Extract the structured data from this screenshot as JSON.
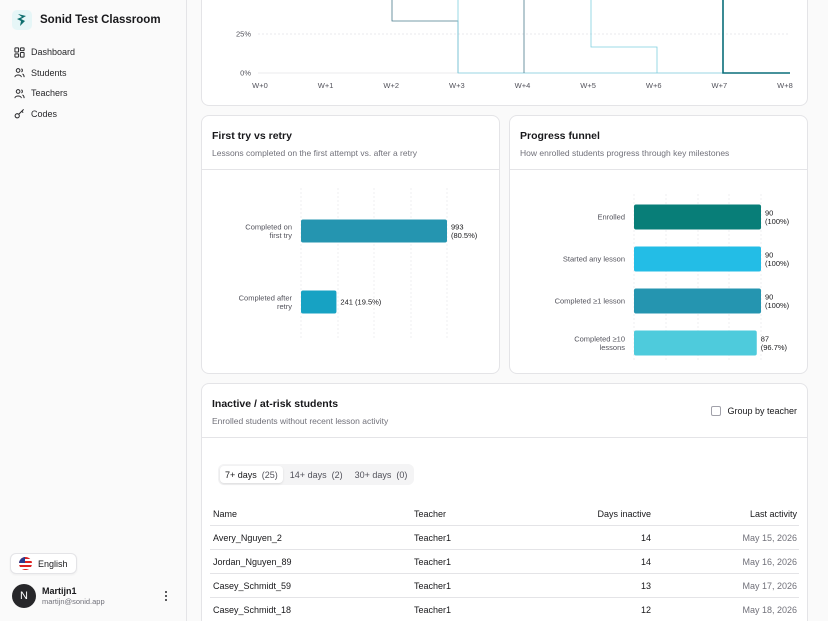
{
  "app": {
    "title": "Sonid Test Classroom"
  },
  "sidebar": {
    "items": [
      {
        "label": "Dashboard",
        "icon": "grid-icon"
      },
      {
        "label": "Students",
        "icon": "users-icon"
      },
      {
        "label": "Teachers",
        "icon": "users-icon"
      },
      {
        "label": "Codes",
        "icon": "key-icon"
      }
    ],
    "language": "English",
    "user": {
      "name": "Martijn1",
      "email": "martijn@sonid.app",
      "initial": "N"
    }
  },
  "top_chart": {
    "y_ticks": [
      "25%",
      "0%"
    ],
    "x_ticks": [
      "W+0",
      "W+1",
      "W+2",
      "W+3",
      "W+4",
      "W+5",
      "W+6",
      "W+7",
      "W+8"
    ]
  },
  "first_try": {
    "title": "First try vs retry",
    "subtitle": "Lessons completed on the first attempt vs. after a retry"
  },
  "funnel": {
    "title": "Progress funnel",
    "subtitle": "How enrolled students progress through key milestones"
  },
  "chart_data": [
    {
      "type": "line",
      "x": [
        "W+0",
        "W+1",
        "W+2",
        "W+3",
        "W+4",
        "W+5",
        "W+6",
        "W+7",
        "W+8"
      ],
      "yticks": [
        "25%",
        "0%"
      ],
      "note": "retention step lines, upper portion cropped"
    },
    {
      "type": "bar",
      "orientation": "horizontal",
      "categories": [
        "Completed on first try",
        "Completed after retry"
      ],
      "values": [
        993,
        241
      ],
      "percents": [
        "80.5%",
        "19.5%"
      ],
      "colors": [
        "#2595b0",
        "#17a2c3"
      ]
    },
    {
      "type": "bar",
      "orientation": "horizontal",
      "categories": [
        "Enrolled",
        "Started any lesson",
        "Completed ≥1 lesson",
        "Completed ≥10 lessons"
      ],
      "values": [
        90,
        90,
        90,
        87
      ],
      "percents": [
        "100%",
        "100%",
        "100%",
        "96.7%"
      ],
      "colors": [
        "#087e78",
        "#23bde6",
        "#2595b0",
        "#4ecbdc"
      ]
    }
  ],
  "inactive": {
    "title": "Inactive / at-risk students",
    "subtitle": "Enrolled students without recent lesson activity",
    "group_by_label": "Group by teacher",
    "tabs": [
      {
        "label": "7+ days",
        "count": "(25)"
      },
      {
        "label": "14+ days",
        "count": "(2)"
      },
      {
        "label": "30+ days",
        "count": "(0)"
      }
    ],
    "columns": [
      "Name",
      "Teacher",
      "Days inactive",
      "Last activity"
    ],
    "rows": [
      [
        "Avery_Nguyen_2",
        "Teacher1",
        "14",
        "May 15, 2026"
      ],
      [
        "Jordan_Nguyen_89",
        "Teacher1",
        "14",
        "May 16, 2026"
      ],
      [
        "Casey_Schmidt_59",
        "Teacher1",
        "13",
        "May 17, 2026"
      ],
      [
        "Casey_Schmidt_18",
        "Teacher1",
        "12",
        "May 18, 2026"
      ]
    ]
  }
}
